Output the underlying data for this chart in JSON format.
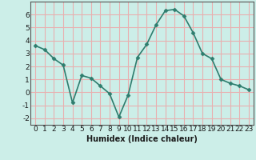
{
  "x": [
    0,
    1,
    2,
    3,
    4,
    5,
    6,
    7,
    8,
    9,
    10,
    11,
    12,
    13,
    14,
    15,
    16,
    17,
    18,
    19,
    20,
    21,
    22,
    23
  ],
  "y": [
    3.6,
    3.3,
    2.6,
    2.1,
    -0.8,
    1.3,
    1.1,
    0.5,
    -0.1,
    -1.9,
    -0.2,
    2.7,
    3.7,
    5.2,
    6.3,
    6.4,
    5.9,
    4.6,
    3.0,
    2.6,
    1.0,
    0.7,
    0.5,
    0.2
  ],
  "line_color": "#2e7d6e",
  "marker": "D",
  "marker_size": 2.5,
  "bg_color": "#cceee8",
  "grid_color": "#e8b0b0",
  "xlabel": "Humidex (Indice chaleur)",
  "xlim": [
    -0.5,
    23.5
  ],
  "ylim": [
    -2.5,
    7.0
  ],
  "yticks": [
    -2,
    -1,
    0,
    1,
    2,
    3,
    4,
    5,
    6
  ],
  "xticks": [
    0,
    1,
    2,
    3,
    4,
    5,
    6,
    7,
    8,
    9,
    10,
    11,
    12,
    13,
    14,
    15,
    16,
    17,
    18,
    19,
    20,
    21,
    22,
    23
  ],
  "xlabel_fontsize": 7,
  "tick_fontsize": 6.5,
  "linewidth": 1.2
}
